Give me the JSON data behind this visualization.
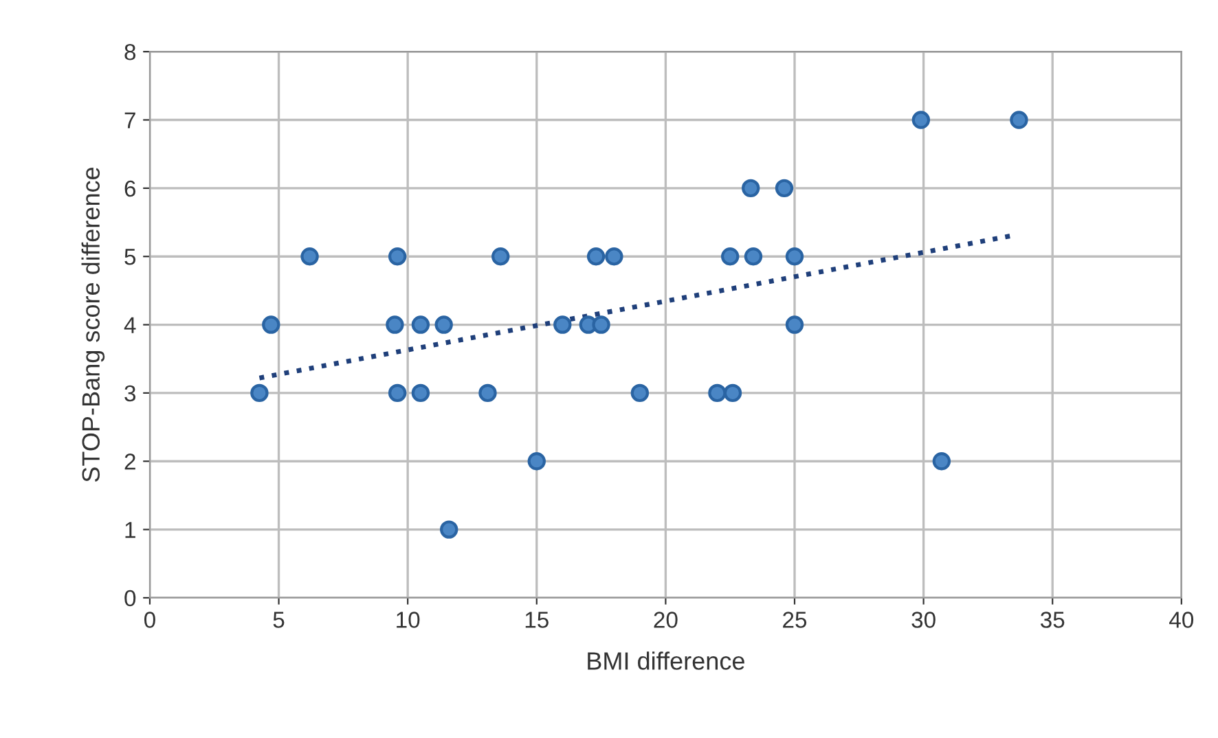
{
  "chart_data": {
    "type": "scatter",
    "xlabel": "BMI difference",
    "ylabel": "STOP-Bang score difference",
    "xlim": [
      0,
      40
    ],
    "xticks": [
      0,
      5,
      10,
      15,
      20,
      25,
      30,
      35,
      40
    ],
    "ylim": [
      0,
      8
    ],
    "yticks": [
      0,
      1,
      2,
      3,
      4,
      5,
      6,
      7,
      8
    ],
    "grid": true,
    "marker": "circle",
    "series": [
      {
        "color": "#4a86c5",
        "x": [
          4.25,
          4.7,
          6.2,
          9.6,
          9.5,
          10.5,
          11.4,
          9.6,
          10.5,
          13.1,
          13.6,
          15.0,
          11.6,
          16.0,
          17.0,
          17.5,
          17.3,
          18.0,
          19.0,
          29.9,
          33.7,
          23.3,
          24.6,
          22.5,
          23.4,
          25.0,
          25.0,
          22.0,
          22.6,
          30.7
        ],
        "values": [
          3,
          4,
          5,
          5,
          4,
          4,
          4,
          3,
          3,
          3,
          5,
          2,
          1,
          4,
          4,
          4,
          5,
          5,
          3,
          7,
          7,
          6,
          6,
          5,
          5,
          5,
          4,
          3,
          3,
          2
        ]
      },
      {
        "type": "line",
        "color": "#1f3f7a",
        "line_style": "dotted",
        "marker": "none",
        "x": [
          4.25,
          33.5
        ],
        "values": [
          3.22,
          5.31
        ]
      }
    ]
  }
}
